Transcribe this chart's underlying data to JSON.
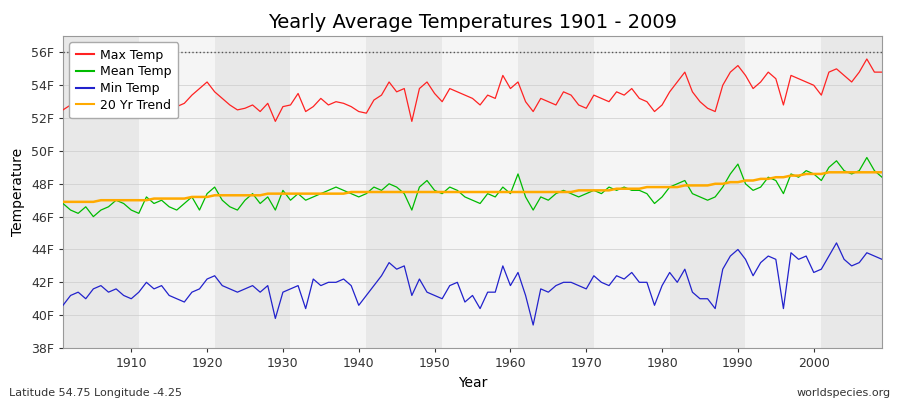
{
  "title": "Yearly Average Temperatures 1901 - 2009",
  "xlabel": "Year",
  "ylabel": "Temperature",
  "lat_lon_text": "Latitude 54.75 Longitude -4.25",
  "credit_text": "worldspecies.org",
  "years": [
    1901,
    1902,
    1903,
    1904,
    1905,
    1906,
    1907,
    1908,
    1909,
    1910,
    1911,
    1912,
    1913,
    1914,
    1915,
    1916,
    1917,
    1918,
    1919,
    1920,
    1921,
    1922,
    1923,
    1924,
    1925,
    1926,
    1927,
    1928,
    1929,
    1930,
    1931,
    1932,
    1933,
    1934,
    1935,
    1936,
    1937,
    1938,
    1939,
    1940,
    1941,
    1942,
    1943,
    1944,
    1945,
    1946,
    1947,
    1948,
    1949,
    1950,
    1951,
    1952,
    1953,
    1954,
    1955,
    1956,
    1957,
    1958,
    1959,
    1960,
    1961,
    1962,
    1963,
    1964,
    1965,
    1966,
    1967,
    1968,
    1969,
    1970,
    1971,
    1972,
    1973,
    1974,
    1975,
    1976,
    1977,
    1978,
    1979,
    1980,
    1981,
    1982,
    1983,
    1984,
    1985,
    1986,
    1987,
    1988,
    1989,
    1990,
    1991,
    1992,
    1993,
    1994,
    1995,
    1996,
    1997,
    1998,
    1999,
    2000,
    2001,
    2002,
    2003,
    2004,
    2005,
    2006,
    2007,
    2008,
    2009
  ],
  "max_temp": [
    52.5,
    52.8,
    52.3,
    52.6,
    52.4,
    52.7,
    52.5,
    52.8,
    52.6,
    52.3,
    53.2,
    53.5,
    53.8,
    53.6,
    53.0,
    52.7,
    52.9,
    53.4,
    53.8,
    54.2,
    53.6,
    53.2,
    52.8,
    52.5,
    52.6,
    52.8,
    52.4,
    52.9,
    51.8,
    52.7,
    52.8,
    53.5,
    52.4,
    52.7,
    53.2,
    52.8,
    53.0,
    52.9,
    52.7,
    52.4,
    52.3,
    53.1,
    53.4,
    54.2,
    53.6,
    53.8,
    51.8,
    53.8,
    54.2,
    53.5,
    53.0,
    53.8,
    53.6,
    53.4,
    53.2,
    52.8,
    53.4,
    53.2,
    54.6,
    53.8,
    54.2,
    53.0,
    52.4,
    53.2,
    53.0,
    52.8,
    53.6,
    53.4,
    52.8,
    52.6,
    53.4,
    53.2,
    53.0,
    53.6,
    53.4,
    53.8,
    53.2,
    53.0,
    52.4,
    52.8,
    53.6,
    54.2,
    54.8,
    53.6,
    53.0,
    52.6,
    52.4,
    54.0,
    54.8,
    55.2,
    54.6,
    53.8,
    54.2,
    54.8,
    54.4,
    52.8,
    54.6,
    54.4,
    54.2,
    54.0,
    53.4,
    54.8,
    55.0,
    54.6,
    54.2,
    54.8,
    55.6,
    54.8,
    54.8
  ],
  "mean_temp": [
    46.8,
    46.4,
    46.2,
    46.6,
    46.0,
    46.4,
    46.6,
    47.0,
    46.8,
    46.4,
    46.2,
    47.2,
    46.8,
    47.0,
    46.6,
    46.4,
    46.8,
    47.2,
    46.4,
    47.4,
    47.8,
    47.0,
    46.6,
    46.4,
    47.0,
    47.4,
    46.8,
    47.2,
    46.4,
    47.6,
    47.0,
    47.4,
    47.0,
    47.2,
    47.4,
    47.6,
    47.8,
    47.6,
    47.4,
    47.2,
    47.4,
    47.8,
    47.6,
    48.0,
    47.8,
    47.4,
    46.4,
    47.8,
    48.2,
    47.6,
    47.4,
    47.8,
    47.6,
    47.2,
    47.0,
    46.8,
    47.4,
    47.2,
    47.8,
    47.4,
    48.6,
    47.2,
    46.4,
    47.2,
    47.0,
    47.4,
    47.6,
    47.4,
    47.2,
    47.4,
    47.6,
    47.4,
    47.8,
    47.6,
    47.8,
    47.6,
    47.6,
    47.4,
    46.8,
    47.2,
    47.8,
    48.0,
    48.2,
    47.4,
    47.2,
    47.0,
    47.2,
    47.8,
    48.6,
    49.2,
    48.0,
    47.6,
    47.8,
    48.4,
    48.2,
    47.4,
    48.6,
    48.4,
    48.8,
    48.6,
    48.2,
    49.0,
    49.4,
    48.8,
    48.6,
    48.8,
    49.6,
    48.8,
    48.4
  ],
  "min_temp": [
    40.6,
    41.2,
    41.4,
    41.0,
    41.6,
    41.8,
    41.4,
    41.6,
    41.2,
    41.0,
    41.4,
    42.0,
    41.6,
    41.8,
    41.2,
    41.0,
    40.8,
    41.4,
    41.6,
    42.2,
    42.4,
    41.8,
    41.6,
    41.4,
    41.6,
    41.8,
    41.4,
    41.8,
    39.8,
    41.4,
    41.6,
    41.8,
    40.4,
    42.2,
    41.8,
    42.0,
    42.0,
    42.2,
    41.8,
    40.6,
    41.2,
    41.8,
    42.4,
    43.2,
    42.8,
    43.0,
    41.2,
    42.2,
    41.4,
    41.2,
    41.0,
    41.8,
    42.0,
    40.8,
    41.2,
    40.4,
    41.4,
    41.4,
    43.0,
    41.8,
    42.6,
    41.2,
    39.4,
    41.6,
    41.4,
    41.8,
    42.0,
    42.0,
    41.8,
    41.6,
    42.4,
    42.0,
    41.8,
    42.4,
    42.2,
    42.6,
    42.0,
    42.0,
    40.6,
    41.8,
    42.6,
    42.0,
    42.8,
    41.4,
    41.0,
    41.0,
    40.4,
    42.8,
    43.6,
    44.0,
    43.4,
    42.4,
    43.2,
    43.6,
    43.4,
    40.4,
    43.8,
    43.4,
    43.6,
    42.6,
    42.8,
    43.6,
    44.4,
    43.4,
    43.0,
    43.2,
    43.8,
    43.6,
    43.4
  ],
  "trend_20yr": [
    46.9,
    46.9,
    46.9,
    46.9,
    46.9,
    47.0,
    47.0,
    47.0,
    47.0,
    47.0,
    47.0,
    47.0,
    47.1,
    47.1,
    47.1,
    47.1,
    47.1,
    47.2,
    47.2,
    47.2,
    47.3,
    47.3,
    47.3,
    47.3,
    47.3,
    47.3,
    47.3,
    47.4,
    47.4,
    47.4,
    47.4,
    47.4,
    47.4,
    47.4,
    47.4,
    47.4,
    47.4,
    47.4,
    47.5,
    47.5,
    47.5,
    47.5,
    47.5,
    47.5,
    47.5,
    47.5,
    47.5,
    47.5,
    47.5,
    47.5,
    47.5,
    47.5,
    47.5,
    47.5,
    47.5,
    47.5,
    47.5,
    47.5,
    47.5,
    47.5,
    47.5,
    47.5,
    47.5,
    47.5,
    47.5,
    47.5,
    47.5,
    47.5,
    47.6,
    47.6,
    47.6,
    47.6,
    47.6,
    47.7,
    47.7,
    47.7,
    47.7,
    47.8,
    47.8,
    47.8,
    47.8,
    47.8,
    47.9,
    47.9,
    47.9,
    47.9,
    48.0,
    48.0,
    48.1,
    48.1,
    48.2,
    48.2,
    48.3,
    48.3,
    48.4,
    48.4,
    48.5,
    48.5,
    48.6,
    48.6,
    48.6,
    48.7,
    48.7,
    48.7,
    48.7,
    48.7,
    48.7,
    48.7,
    48.7
  ],
  "colors": {
    "max": "#ff2222",
    "mean": "#00bb00",
    "min": "#2222cc",
    "trend": "#ffaa00",
    "fig_bg": "#ffffff",
    "plot_bg_light": "#f5f5f5",
    "plot_bg_dark": "#e8e8e8",
    "grid_v": "#cccccc",
    "grid_h": "#cccccc",
    "dashed_line": "#555555"
  },
  "ylim": [
    38,
    57
  ],
  "yticks": [
    38,
    40,
    42,
    44,
    46,
    48,
    50,
    52,
    54,
    56
  ],
  "ytick_labels": [
    "38F",
    "40F",
    "42F",
    "44F",
    "46F",
    "48F",
    "50F",
    "52F",
    "54F",
    "56F"
  ],
  "dashed_y": 56,
  "xlim": [
    1901,
    2009
  ],
  "xticks": [
    1910,
    1920,
    1930,
    1940,
    1950,
    1960,
    1970,
    1980,
    1990,
    2000
  ],
  "title_fontsize": 14,
  "axis_label_fontsize": 10,
  "tick_fontsize": 9,
  "legend_fontsize": 9,
  "stripe_years": [
    1901,
    1911,
    1921,
    1931,
    1941,
    1951,
    1961,
    1971,
    1981,
    1991,
    2001
  ]
}
